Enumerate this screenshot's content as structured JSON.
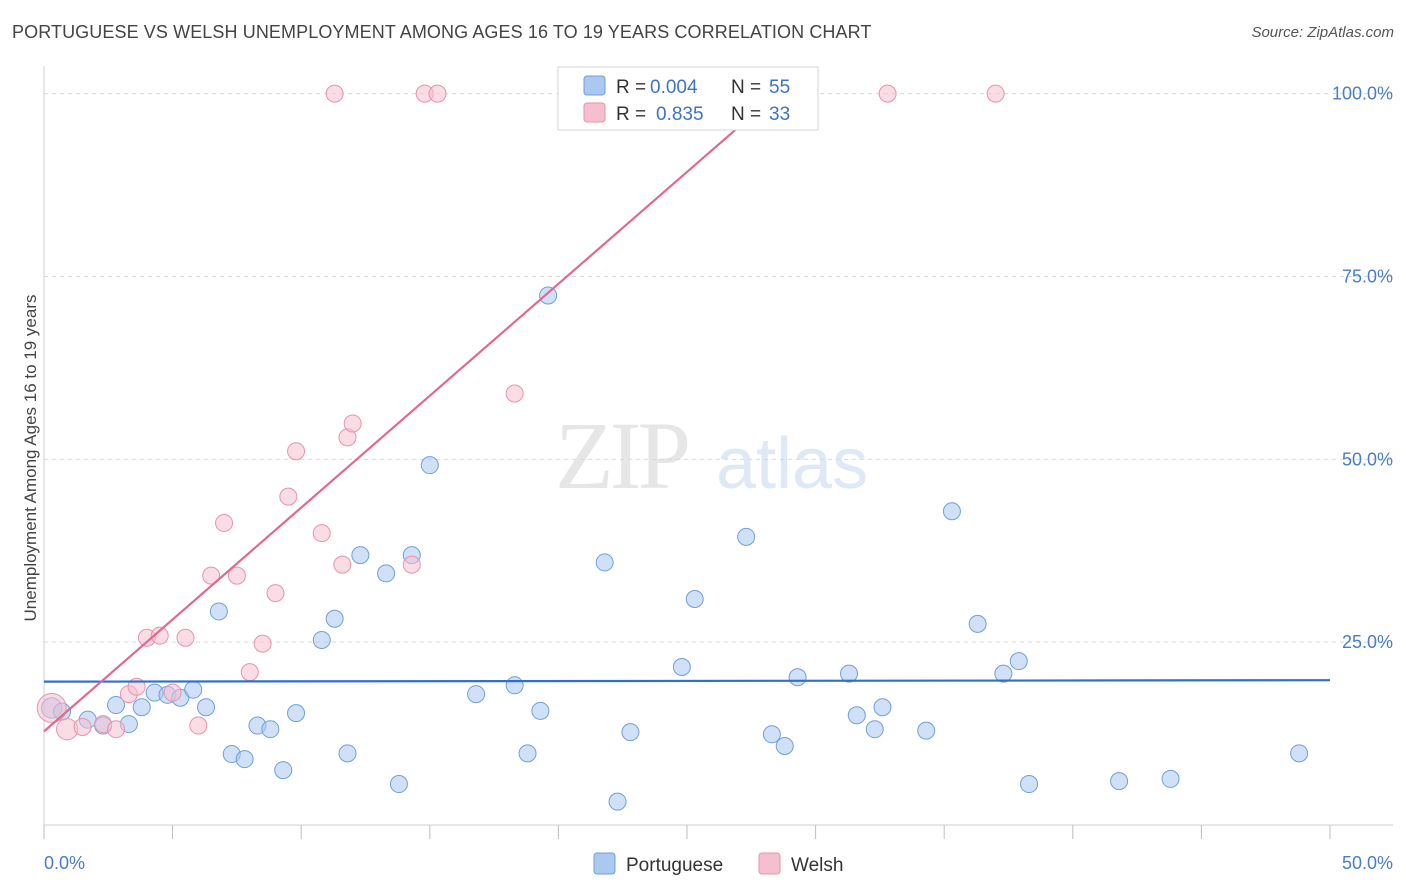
{
  "title": "PORTUGUESE VS WELSH UNEMPLOYMENT AMONG AGES 16 TO 19 YEARS CORRELATION CHART",
  "source": "Source: ZipAtlas.com",
  "watermark": {
    "zip": "ZIP",
    "atlas": "atlas"
  },
  "colors": {
    "portuguese_fill": "#aac8f0",
    "portuguese_stroke": "#6f9fdc",
    "portuguese_line": "#2f6fcf",
    "welsh_fill": "#f6bfd0",
    "welsh_stroke": "#e893ae",
    "welsh_line": "#e2688f",
    "grid": "#d9d9d9",
    "axis_text": "#4a7cc9"
  },
  "legend": {
    "rows": [
      {
        "series": "Portuguese",
        "r_label": "R =",
        "r_value": "0.004",
        "n_label": "N =",
        "n_value": "55"
      },
      {
        "series": "Welsh",
        "r_label": "R =",
        "r_value": "0.835",
        "n_label": "N =",
        "n_value": "33"
      }
    ]
  },
  "bottom_legend": [
    "Portuguese",
    "Welsh"
  ],
  "chart_data": {
    "type": "scatter",
    "title": "PORTUGUESE VS WELSH UNEMPLOYMENT AMONG AGES 16 TO 19 YEARS CORRELATION CHART",
    "xlabel": "",
    "ylabel": "Unemployment Among Ages 16 to 19 years",
    "xlim": [
      0,
      50
    ],
    "ylim": [
      0,
      102
    ],
    "x_tick_labels": [
      "0.0%",
      "50.0%"
    ],
    "y_ticks": [
      25,
      50,
      75,
      100
    ],
    "y_tick_labels": [
      "25.0%",
      "50.0%",
      "75.0%",
      "100.0%"
    ],
    "grid": true,
    "legend_position": "top-center",
    "series": [
      {
        "name": "Portuguese",
        "r": 0.004,
        "n": 55,
        "trend": {
          "x": [
            0,
            50
          ],
          "y": [
            19.6,
            19.8
          ]
        },
        "points": [
          [
            0.3,
            16.0,
            3
          ],
          [
            0.7,
            15.5,
            1
          ],
          [
            1.7,
            14.4,
            1
          ],
          [
            2.3,
            13.6,
            1
          ],
          [
            2.8,
            16.4,
            1
          ],
          [
            3.3,
            13.8,
            1
          ],
          [
            3.8,
            16.1,
            1
          ],
          [
            4.3,
            18.1,
            1
          ],
          [
            4.8,
            17.8,
            1
          ],
          [
            5.3,
            17.4,
            1
          ],
          [
            5.8,
            18.5,
            1
          ],
          [
            6.3,
            16.1,
            1
          ],
          [
            6.8,
            29.2,
            1
          ],
          [
            7.3,
            9.7,
            1
          ],
          [
            7.8,
            9.0,
            1
          ],
          [
            8.3,
            13.6,
            1
          ],
          [
            8.8,
            13.1,
            1
          ],
          [
            9.3,
            7.5,
            1
          ],
          [
            9.8,
            15.3,
            1
          ],
          [
            10.8,
            25.3,
            1
          ],
          [
            11.3,
            28.2,
            1
          ],
          [
            11.8,
            9.8,
            1
          ],
          [
            12.3,
            36.9,
            1
          ],
          [
            13.3,
            34.4,
            1
          ],
          [
            13.8,
            5.6,
            1
          ],
          [
            14.3,
            36.9,
            1
          ],
          [
            15.0,
            49.2,
            1
          ],
          [
            16.8,
            17.9,
            1
          ],
          [
            18.3,
            19.1,
            1
          ],
          [
            18.8,
            9.8,
            1
          ],
          [
            19.3,
            15.6,
            1
          ],
          [
            19.6,
            72.4,
            1
          ],
          [
            21.8,
            35.9,
            1
          ],
          [
            22.3,
            3.2,
            1
          ],
          [
            22.8,
            12.7,
            1
          ],
          [
            24.8,
            21.6,
            1
          ],
          [
            25.3,
            30.9,
            1
          ],
          [
            27.3,
            39.4,
            1
          ],
          [
            28.3,
            12.4,
            1
          ],
          [
            28.8,
            10.8,
            1
          ],
          [
            29.3,
            20.2,
            1
          ],
          [
            31.3,
            20.7,
            1
          ],
          [
            31.6,
            15.0,
            1
          ],
          [
            32.3,
            13.1,
            1
          ],
          [
            32.6,
            16.1,
            1
          ],
          [
            34.3,
            12.9,
            1
          ],
          [
            35.3,
            42.9,
            1
          ],
          [
            36.3,
            27.5,
            1
          ],
          [
            37.3,
            20.7,
            1
          ],
          [
            37.9,
            22.4,
            1
          ],
          [
            38.3,
            5.6,
            1
          ],
          [
            41.8,
            6.0,
            1
          ],
          [
            43.8,
            6.3,
            1
          ],
          [
            48.8,
            9.8,
            1
          ]
        ]
      },
      {
        "name": "Welsh",
        "r": 0.835,
        "n": 33,
        "trend": {
          "x": [
            0,
            28.5
          ],
          "y": [
            12.8,
            100
          ]
        },
        "points": [
          [
            0.3,
            16.0,
            4
          ],
          [
            0.9,
            13.1,
            2
          ],
          [
            1.5,
            13.4,
            1
          ],
          [
            2.3,
            13.8,
            1
          ],
          [
            2.8,
            13.1,
            1
          ],
          [
            3.3,
            17.9,
            1
          ],
          [
            3.6,
            18.9,
            1
          ],
          [
            4.0,
            25.6,
            1
          ],
          [
            4.5,
            25.9,
            1
          ],
          [
            5.0,
            18.1,
            1
          ],
          [
            5.5,
            25.6,
            1
          ],
          [
            6.0,
            13.6,
            1
          ],
          [
            6.5,
            34.1,
            1
          ],
          [
            7.0,
            41.3,
            1
          ],
          [
            7.5,
            34.1,
            1
          ],
          [
            8.0,
            20.9,
            1
          ],
          [
            8.5,
            24.8,
            1
          ],
          [
            9.0,
            31.7,
            1
          ],
          [
            9.5,
            44.9,
            1
          ],
          [
            9.8,
            51.1,
            1
          ],
          [
            10.8,
            39.9,
            1
          ],
          [
            11.3,
            100.0,
            1
          ],
          [
            11.6,
            35.6,
            1
          ],
          [
            11.8,
            53.0,
            1
          ],
          [
            12.0,
            54.9,
            1
          ],
          [
            14.3,
            35.6,
            1
          ],
          [
            14.8,
            100.0,
            1
          ],
          [
            15.3,
            100.0,
            1
          ],
          [
            18.3,
            59.0,
            1
          ],
          [
            32.8,
            100.0,
            1
          ],
          [
            37.0,
            100.0,
            1
          ]
        ]
      }
    ]
  }
}
